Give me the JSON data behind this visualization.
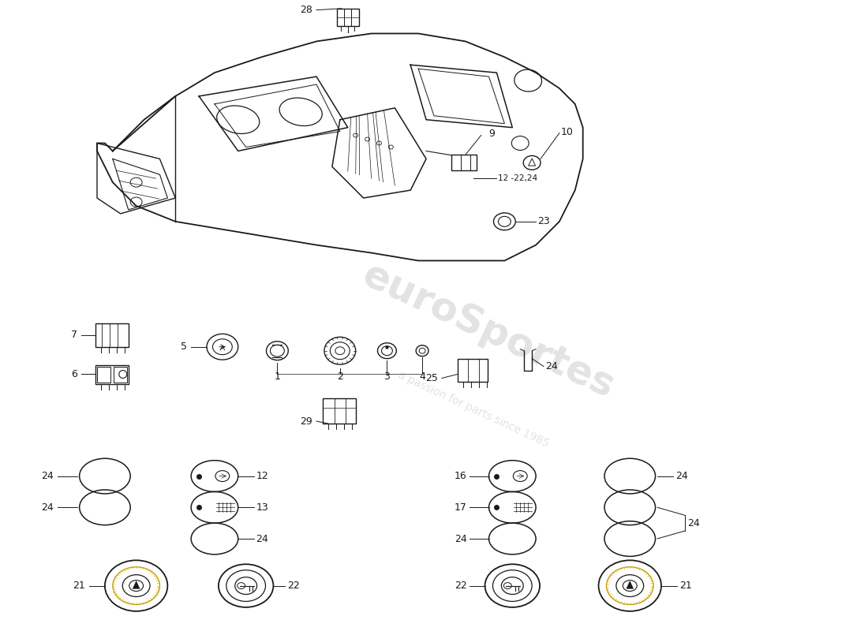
{
  "bg": "#ffffff",
  "lc": "#1a1a1a",
  "fs": 9,
  "wm1": "euroSportes",
  "wm2": "a passion for parts since 1985",
  "gold": "#c8a000"
}
